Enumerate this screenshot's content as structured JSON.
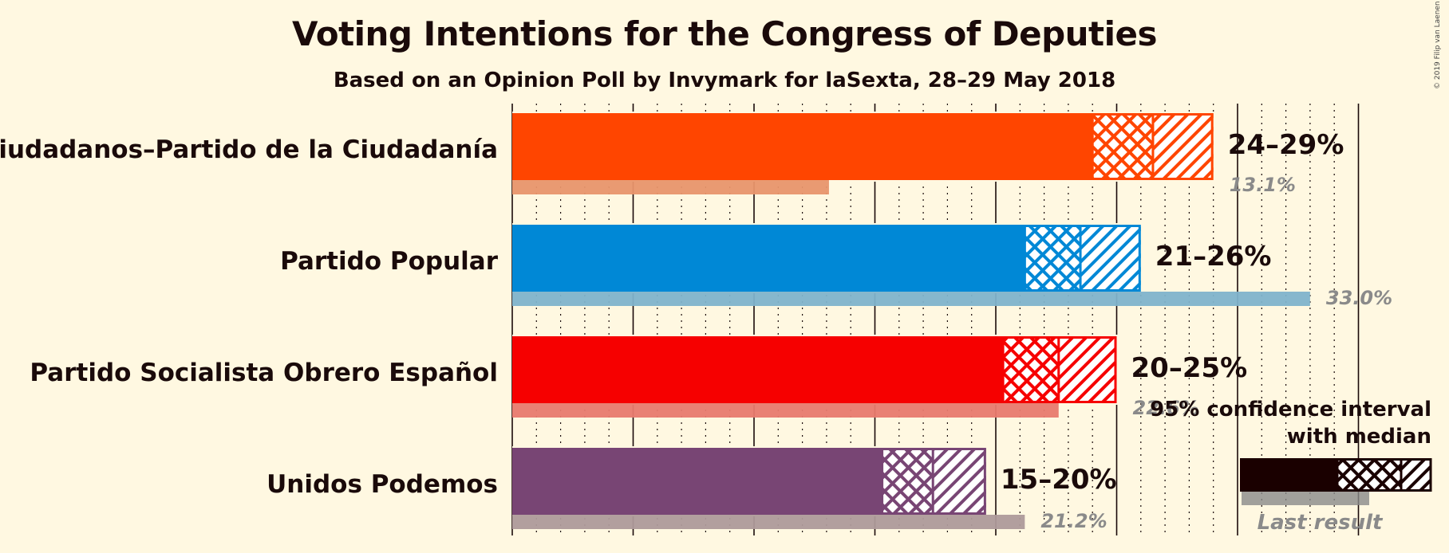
{
  "chart_data": {
    "type": "bar",
    "title": "Voting Intentions for the Congress of Deputies",
    "subtitle": "Based on an Opinion Poll by Invymark for laSexta, 28–29 May 2018",
    "copyright": "© 2019 Filip van Laenen",
    "xlim": [
      0,
      35
    ],
    "grid": true,
    "parties": [
      {
        "name": "Ciudadanos–Partido de la Ciudadanía",
        "color": "#FF4500",
        "last_color": "#E8956B",
        "ci_low": 24.0,
        "median": 26.5,
        "ci_high": 29.0,
        "last_result": 13.1,
        "range_label": "24–29%",
        "last_label": "13.1%"
      },
      {
        "name": "Partido Popular",
        "color": "#0088D6",
        "last_color": "#7FB3CB",
        "ci_low": 21.2,
        "median": 23.5,
        "ci_high": 26.0,
        "last_result": 33.0,
        "range_label": "21–26%",
        "last_label": "33.0%"
      },
      {
        "name": "Partido Socialista Obrero Español",
        "color": "#F60000",
        "last_color": "#E87A6E",
        "ci_low": 20.3,
        "median": 22.6,
        "ci_high": 25.0,
        "last_result": 22.6,
        "range_label": "20–25%",
        "last_label": "22.6%"
      },
      {
        "name": "Unidos Podemos",
        "color": "#784574",
        "last_color": "#AE9A9A",
        "ci_low": 15.3,
        "median": 17.4,
        "ci_high": 19.6,
        "last_result": 21.2,
        "range_label": "15–20%",
        "last_label": "21.2%"
      }
    ],
    "legend": {
      "line1": "95% confidence interval",
      "line2": "with median",
      "last_result": "Last result",
      "placement": "bottom-right"
    }
  }
}
